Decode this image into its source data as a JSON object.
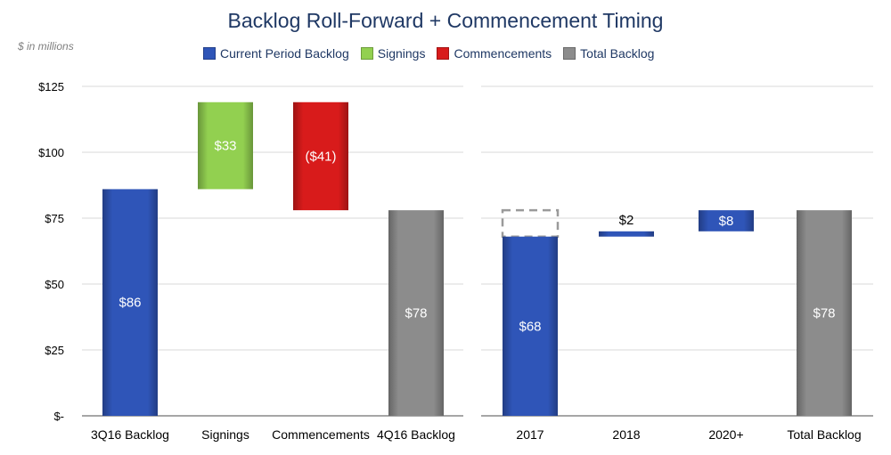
{
  "title": "Backlog Roll-Forward + Commencement Timing",
  "units_note": "$ in millions",
  "legend": [
    {
      "label": "Current Period Backlog",
      "color": "#2f55b8",
      "icon": "blue-square-icon"
    },
    {
      "label": "Signings",
      "color": "#92d050",
      "icon": "green-square-icon"
    },
    {
      "label": "Commencements",
      "color": "#d81b1b",
      "icon": "red-square-icon"
    },
    {
      "label": "Total Backlog",
      "color": "#8c8c8c",
      "icon": "gray-square-icon"
    }
  ],
  "chart_data": [
    {
      "type": "waterfall",
      "title": "",
      "ylim": [
        0,
        125
      ],
      "yticks": [
        0,
        25,
        50,
        75,
        100,
        125
      ],
      "ytick_labels": [
        "$-",
        "$25",
        "$50",
        "$75",
        "$100",
        "$125"
      ],
      "grid": true,
      "categories": [
        "3Q16 Backlog",
        "Signings",
        "Commencements",
        "4Q16 Backlog"
      ],
      "bars": [
        {
          "category": "3Q16 Backlog",
          "start": 0,
          "end": 86,
          "value": 86,
          "label": "$86",
          "kind": "current"
        },
        {
          "category": "Signings",
          "start": 86,
          "end": 119,
          "value": 33,
          "label": "$33",
          "kind": "signings"
        },
        {
          "category": "Commencements",
          "start": 78,
          "end": 119,
          "value": -41,
          "label": "($41)",
          "kind": "commencements"
        },
        {
          "category": "4Q16 Backlog",
          "start": 0,
          "end": 78,
          "value": 78,
          "label": "$78",
          "kind": "total"
        }
      ]
    },
    {
      "type": "waterfall",
      "title": "",
      "ylim": [
        0,
        125
      ],
      "grid": true,
      "categories": [
        "2017",
        "2018",
        "2020+",
        "Total Backlog"
      ],
      "bars": [
        {
          "category": "2017",
          "start": 0,
          "end": 68,
          "value": 68,
          "label": "$68",
          "kind": "current"
        },
        {
          "category": "2018",
          "start": 68,
          "end": 70,
          "value": 2,
          "label": "$2",
          "kind": "current"
        },
        {
          "category": "2020+",
          "start": 70,
          "end": 78,
          "value": 8,
          "label": "$8",
          "kind": "current"
        },
        {
          "category": "Total Backlog",
          "start": 0,
          "end": 78,
          "value": 78,
          "label": "$78",
          "kind": "total"
        }
      ],
      "placeholder": {
        "category": "2017",
        "start": 68,
        "end": 78,
        "style": "dashed-outline"
      }
    }
  ]
}
